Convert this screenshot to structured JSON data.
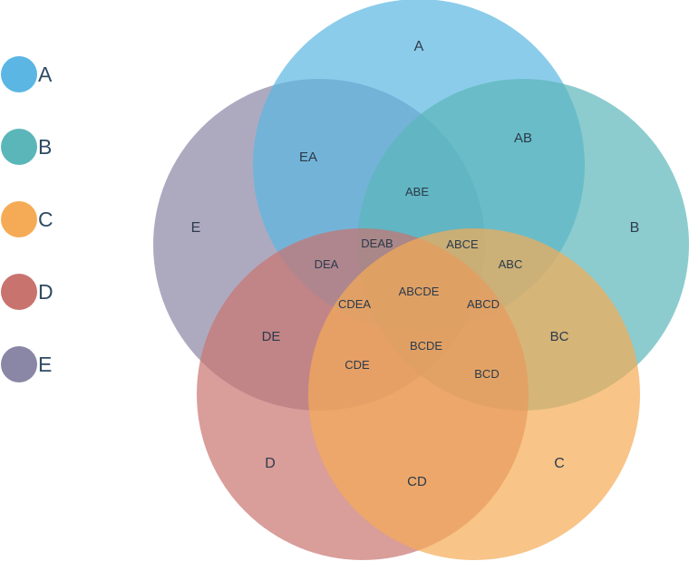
{
  "legend": [
    {
      "label": "A",
      "color": "#5bb6e3"
    },
    {
      "label": "B",
      "color": "#5bb6b9"
    },
    {
      "label": "C",
      "color": "#f5ab55"
    },
    {
      "label": "D",
      "color": "#c9736f"
    },
    {
      "label": "E",
      "color": "#8a86a5"
    }
  ],
  "sets": [
    {
      "id": "A",
      "label": "A",
      "color": "#5bb6e3"
    },
    {
      "id": "B",
      "label": "B",
      "color": "#5bb6b9"
    },
    {
      "id": "C",
      "label": "C",
      "color": "#f5ab55"
    },
    {
      "id": "D",
      "label": "D",
      "color": "#c9736f"
    },
    {
      "id": "E",
      "label": "E",
      "color": "#8a86a5"
    }
  ],
  "regions": [
    "EA",
    "AB",
    "ABE",
    "DEAB",
    "ABCE",
    "ABC",
    "DEA",
    "ABCDE",
    "CDEA",
    "ABCD",
    "DE",
    "BCDE",
    "BC",
    "CDE",
    "BCD",
    "CD"
  ]
}
